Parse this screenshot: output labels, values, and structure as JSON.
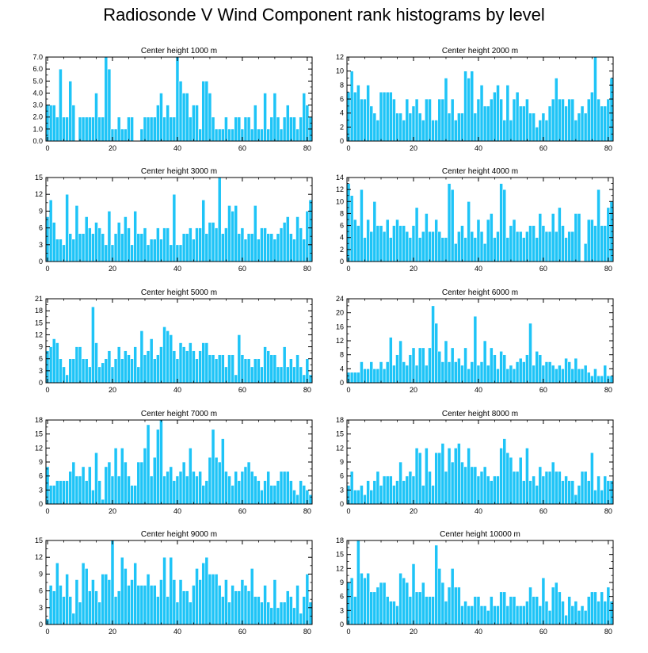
{
  "title": "Radiosonde V Wind Component rank histograms by level",
  "colors": {
    "bar": "#1ec4f7",
    "bar_edge": "#ffffff",
    "axis": "#000000"
  },
  "chart_data": [
    {
      "type": "bar",
      "title": "Center height 1000 m",
      "xlim": [
        -0.5,
        81.5
      ],
      "ylim": [
        0,
        7
      ],
      "yticks": [
        0,
        1,
        2,
        3,
        4,
        5,
        6,
        7
      ],
      "ytick_decimals": 1,
      "xticks": [
        0,
        20,
        40,
        60,
        80
      ],
      "categories_start": 0,
      "values": [
        3,
        3,
        3,
        2,
        6,
        2,
        2,
        5,
        3,
        0,
        2,
        2,
        2,
        2,
        2,
        4,
        2,
        2,
        7,
        6,
        1,
        1,
        2,
        1,
        1,
        2,
        2,
        0,
        0,
        1,
        2,
        2,
        2,
        2,
        3,
        4,
        2,
        3,
        2,
        2,
        7,
        5,
        4,
        4,
        2,
        3,
        3,
        1,
        5,
        5,
        4,
        2,
        1,
        1,
        1,
        2,
        1,
        1,
        2,
        2,
        1,
        2,
        2,
        1,
        3,
        1,
        1,
        4,
        1,
        2,
        4,
        2,
        1,
        2,
        3,
        2,
        2,
        1,
        2,
        4,
        3,
        2
      ],
      "bar_width": 1
    },
    {
      "type": "bar",
      "title": "Center height 2000 m",
      "xlim": [
        -0.5,
        81.5
      ],
      "ylim": [
        0,
        12
      ],
      "yticks": [
        0,
        2,
        4,
        6,
        8,
        10,
        12
      ],
      "ytick_decimals": 0,
      "xticks": [
        0,
        20,
        40,
        60,
        80
      ],
      "categories_start": 0,
      "values": [
        7,
        10,
        7,
        8,
        6,
        6,
        8,
        5,
        4,
        3,
        7,
        7,
        7,
        7,
        6,
        4,
        4,
        3,
        6,
        4,
        5,
        6,
        4,
        3,
        6,
        6,
        3,
        3,
        6,
        6,
        9,
        4,
        6,
        3,
        4,
        4,
        10,
        9,
        10,
        4,
        6,
        8,
        5,
        5,
        6,
        7,
        8,
        6,
        3,
        8,
        3,
        6,
        7,
        5,
        5,
        6,
        4,
        4,
        2,
        3,
        4,
        3,
        5,
        6,
        9,
        6,
        6,
        5,
        6,
        6,
        3,
        4,
        5,
        4,
        6,
        7,
        12,
        6,
        5,
        5,
        6,
        9
      ],
      "bar_width": 1
    },
    {
      "type": "bar",
      "title": "Center height 3000 m",
      "xlim": [
        -0.5,
        81.5
      ],
      "ylim": [
        0,
        15
      ],
      "yticks": [
        0,
        3,
        6,
        9,
        12,
        15
      ],
      "ytick_decimals": 0,
      "xticks": [
        0,
        20,
        40,
        60,
        80
      ],
      "categories_start": 0,
      "values": [
        8,
        11,
        7,
        4,
        4,
        3,
        12,
        5,
        4,
        10,
        5,
        5,
        8,
        6,
        5,
        7,
        6,
        5,
        3,
        9,
        3,
        5,
        7,
        5,
        8,
        6,
        3,
        9,
        5,
        5,
        6,
        3,
        4,
        4,
        6,
        4,
        6,
        6,
        3,
        12,
        3,
        3,
        5,
        5,
        6,
        4,
        6,
        6,
        11,
        5,
        7,
        7,
        6,
        15,
        5,
        6,
        10,
        9,
        10,
        5,
        6,
        4,
        5,
        5,
        10,
        4,
        6,
        6,
        5,
        5,
        4,
        5,
        6,
        7,
        8,
        5,
        4,
        8,
        6,
        4,
        9,
        11
      ],
      "bar_width": 1
    },
    {
      "type": "bar",
      "title": "Center height 4000 m",
      "xlim": [
        -0.5,
        81.5
      ],
      "ylim": [
        0,
        14
      ],
      "yticks": [
        0,
        2,
        4,
        6,
        8,
        10,
        12,
        14
      ],
      "ytick_decimals": 0,
      "xticks": [
        0,
        20,
        40,
        60,
        80
      ],
      "categories_start": 0,
      "values": [
        13,
        11,
        7,
        6,
        12,
        4,
        7,
        5,
        10,
        6,
        6,
        5,
        7,
        4,
        6,
        7,
        6,
        6,
        5,
        4,
        6,
        9,
        4,
        5,
        8,
        5,
        5,
        7,
        5,
        4,
        4,
        13,
        12,
        3,
        5,
        6,
        4,
        10,
        5,
        4,
        7,
        5,
        3,
        7,
        8,
        4,
        5,
        13,
        12,
        4,
        6,
        7,
        5,
        5,
        4,
        5,
        6,
        6,
        4,
        8,
        6,
        5,
        5,
        8,
        5,
        9,
        6,
        4,
        5,
        5,
        8,
        8,
        0,
        3,
        7,
        7,
        6,
        12,
        6,
        6,
        9,
        10
      ],
      "bar_width": 1
    },
    {
      "type": "bar",
      "title": "Center height 5000 m",
      "xlim": [
        -0.5,
        81.5
      ],
      "ylim": [
        0,
        21
      ],
      "yticks": [
        0,
        3,
        6,
        9,
        12,
        15,
        18,
        21
      ],
      "ytick_decimals": 0,
      "xticks": [
        0,
        20,
        40,
        60,
        80
      ],
      "categories_start": 0,
      "values": [
        8,
        9,
        11,
        10,
        6,
        4,
        2,
        6,
        6,
        9,
        9,
        6,
        6,
        4,
        19,
        10,
        4,
        5,
        6,
        8,
        4,
        6,
        9,
        6,
        8,
        7,
        6,
        9,
        4,
        13,
        7,
        8,
        11,
        6,
        7,
        9,
        14,
        13,
        12,
        8,
        6,
        10,
        9,
        8,
        10,
        8,
        6,
        8,
        10,
        10,
        7,
        7,
        6,
        7,
        7,
        4,
        7,
        7,
        2,
        12,
        7,
        6,
        6,
        4,
        6,
        6,
        4,
        9,
        8,
        7,
        7,
        4,
        4,
        9,
        4,
        6,
        4,
        7,
        4,
        2,
        6,
        2
      ],
      "bar_width": 1
    },
    {
      "type": "bar",
      "title": "Center height 6000 m",
      "xlim": [
        -0.5,
        81.5
      ],
      "ylim": [
        0,
        24
      ],
      "yticks": [
        0,
        4,
        8,
        12,
        16,
        20,
        24
      ],
      "ytick_decimals": 0,
      "xticks": [
        0,
        20,
        40,
        60,
        80
      ],
      "categories_start": 0,
      "values": [
        3,
        3,
        3,
        3,
        6,
        4,
        4,
        6,
        4,
        4,
        6,
        4,
        6,
        13,
        5,
        8,
        12,
        6,
        5,
        8,
        10,
        5,
        10,
        10,
        5,
        10,
        22,
        17,
        9,
        6,
        12,
        6,
        10,
        6,
        7,
        5,
        10,
        4,
        6,
        19,
        5,
        6,
        12,
        5,
        10,
        8,
        4,
        9,
        8,
        4,
        5,
        4,
        6,
        7,
        6,
        8,
        17,
        5,
        9,
        8,
        5,
        6,
        6,
        5,
        4,
        5,
        4,
        7,
        6,
        4,
        7,
        4,
        4,
        5,
        3,
        2,
        4,
        2,
        2,
        5,
        2,
        2
      ],
      "bar_width": 1
    },
    {
      "type": "bar",
      "title": "Center height 7000 m",
      "xlim": [
        -0.5,
        81.5
      ],
      "ylim": [
        0,
        18
      ],
      "yticks": [
        0,
        3,
        6,
        9,
        12,
        15,
        18
      ],
      "ytick_decimals": 0,
      "xticks": [
        0,
        20,
        40,
        60,
        80
      ],
      "categories_start": 0,
      "values": [
        8,
        4,
        4,
        5,
        5,
        5,
        5,
        7,
        9,
        6,
        6,
        8,
        5,
        8,
        3,
        11,
        5,
        1,
        8,
        9,
        6,
        12,
        6,
        12,
        9,
        6,
        4,
        4,
        9,
        9,
        12,
        17,
        6,
        10,
        16,
        18,
        6,
        7,
        8,
        5,
        6,
        7,
        9,
        6,
        12,
        7,
        6,
        7,
        4,
        5,
        10,
        16,
        10,
        9,
        14,
        7,
        6,
        4,
        7,
        5,
        7,
        8,
        9,
        7,
        6,
        5,
        3,
        5,
        7,
        4,
        4,
        5,
        7,
        7,
        7,
        5,
        3,
        2,
        5,
        4,
        3,
        2
      ],
      "bar_width": 1
    },
    {
      "type": "bar",
      "title": "Center height 8000 m",
      "xlim": [
        -0.5,
        81.5
      ],
      "ylim": [
        0,
        18
      ],
      "yticks": [
        0,
        3,
        6,
        9,
        12,
        15,
        18
      ],
      "ytick_decimals": 0,
      "xticks": [
        0,
        20,
        40,
        60,
        80
      ],
      "categories_start": 0,
      "values": [
        4,
        7,
        3,
        3,
        4,
        2,
        5,
        3,
        5,
        7,
        4,
        6,
        6,
        6,
        4,
        5,
        9,
        5,
        6,
        7,
        6,
        12,
        11,
        4,
        12,
        7,
        4,
        11,
        11,
        13,
        7,
        12,
        9,
        12,
        13,
        9,
        8,
        12,
        8,
        8,
        6,
        7,
        8,
        6,
        5,
        6,
        6,
        12,
        14,
        11,
        10,
        7,
        7,
        10,
        5,
        12,
        5,
        6,
        4,
        8,
        6,
        7,
        7,
        9,
        7,
        7,
        5,
        6,
        5,
        5,
        2,
        4,
        7,
        7,
        5,
        11,
        3,
        6,
        3,
        6,
        5,
        5
      ],
      "bar_width": 1
    },
    {
      "type": "bar",
      "title": "Center height 9000 m",
      "xlim": [
        -0.5,
        81.5
      ],
      "ylim": [
        0,
        15
      ],
      "yticks": [
        0,
        3,
        6,
        9,
        12,
        15
      ],
      "ytick_decimals": 0,
      "xticks": [
        0,
        20,
        40,
        60,
        80
      ],
      "categories_start": 0,
      "values": [
        1,
        7,
        6,
        11,
        7,
        5,
        9,
        5,
        2,
        8,
        4,
        11,
        10,
        6,
        8,
        6,
        4,
        9,
        9,
        8,
        15,
        5,
        6,
        12,
        10,
        7,
        8,
        11,
        7,
        7,
        7,
        9,
        7,
        7,
        5,
        8,
        12,
        5,
        12,
        8,
        4,
        8,
        6,
        6,
        4,
        7,
        10,
        8,
        11,
        12,
        9,
        9,
        9,
        7,
        5,
        8,
        4,
        7,
        6,
        6,
        8,
        7,
        6,
        10,
        5,
        5,
        4,
        7,
        4,
        3,
        8,
        3,
        4,
        4,
        6,
        5,
        3,
        7,
        2,
        5,
        9,
        4
      ],
      "bar_width": 1
    },
    {
      "type": "bar",
      "title": "Center height 10000 m",
      "xlim": [
        -0.5,
        81.5
      ],
      "ylim": [
        0,
        18
      ],
      "yticks": [
        0,
        3,
        6,
        9,
        12,
        15,
        18
      ],
      "ytick_decimals": 0,
      "xticks": [
        0,
        20,
        40,
        60,
        80
      ],
      "categories_start": 0,
      "values": [
        9,
        10,
        6,
        18,
        11,
        10,
        11,
        7,
        7,
        8,
        9,
        9,
        6,
        5,
        5,
        4,
        11,
        10,
        9,
        6,
        13,
        7,
        7,
        9,
        6,
        6,
        6,
        17,
        12,
        9,
        5,
        8,
        12,
        8,
        8,
        4,
        5,
        4,
        4,
        6,
        6,
        4,
        4,
        3,
        6,
        4,
        4,
        7,
        7,
        4,
        6,
        6,
        4,
        4,
        4,
        5,
        8,
        6,
        6,
        4,
        10,
        5,
        3,
        8,
        9,
        7,
        5,
        2,
        6,
        4,
        5,
        3,
        4,
        3,
        6,
        7,
        7,
        5,
        7,
        5,
        8,
        5
      ],
      "bar_width": 1
    }
  ]
}
